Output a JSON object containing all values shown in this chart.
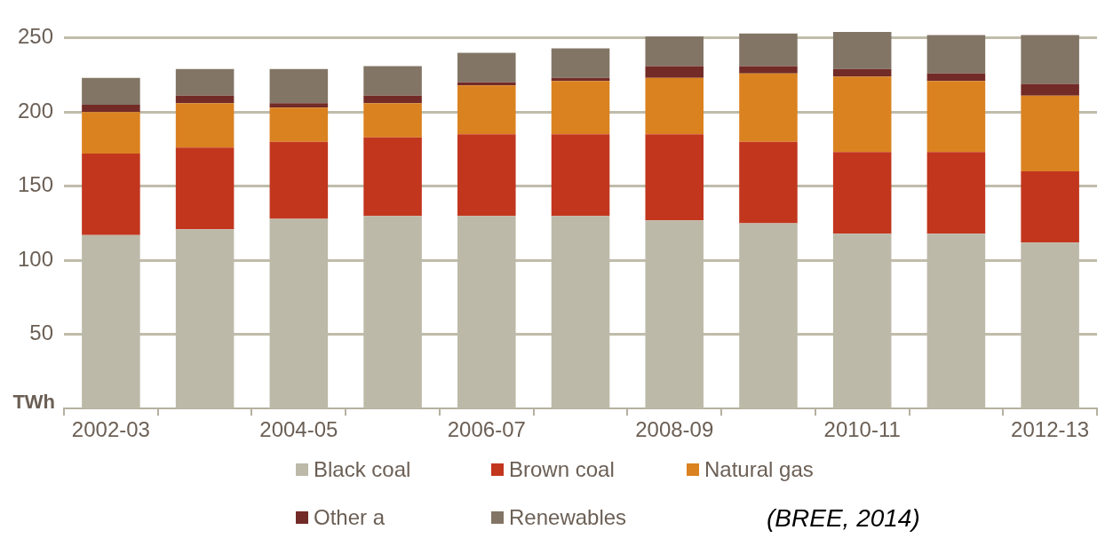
{
  "chart_data": {
    "type": "bar",
    "stacked": true,
    "ylabel": "TWh",
    "categories": [
      "2002-03",
      null,
      "2004-05",
      null,
      "2006-07",
      null,
      "2008-09",
      null,
      "2010-11",
      null,
      "2012-13"
    ],
    "series": [
      {
        "name": "Black coal",
        "color": "#bcb9a8",
        "values": [
          117,
          121,
          128,
          130,
          130,
          130,
          127,
          125,
          118,
          118,
          112
        ]
      },
      {
        "name": "Brown coal",
        "color": "#c2361e",
        "values": [
          55,
          55,
          52,
          53,
          55,
          55,
          58,
          55,
          55,
          55,
          48
        ]
      },
      {
        "name": "Natural gas",
        "color": "#da8220",
        "values": [
          28,
          30,
          23,
          23,
          33,
          36,
          38,
          46,
          51,
          48,
          51
        ]
      },
      {
        "name": "Other a",
        "color": "#722b27",
        "values": [
          5,
          5,
          3,
          5,
          2,
          2,
          8,
          5,
          5,
          5,
          8
        ]
      },
      {
        "name": "Renewables",
        "color": "#827565",
        "values": [
          18,
          18,
          23,
          20,
          20,
          20,
          20,
          22,
          25,
          26,
          33
        ]
      }
    ],
    "ylim": [
      0,
      255
    ],
    "yticks": [
      50,
      100,
      150,
      200,
      250
    ],
    "grid": "y",
    "legend": "bottom",
    "annotations": [
      "(BREE, 2014)"
    ]
  }
}
